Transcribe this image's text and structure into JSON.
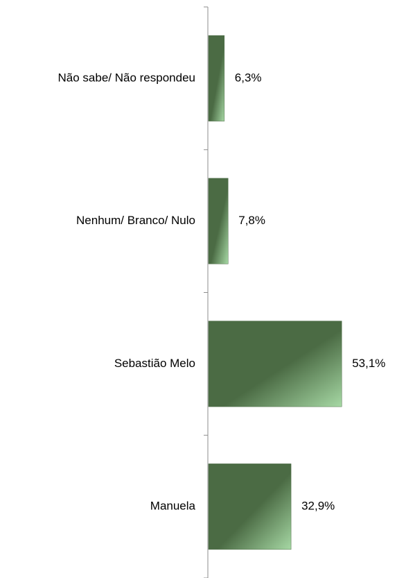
{
  "chart_data": {
    "type": "bar",
    "orientation": "horizontal",
    "categories": [
      "Não sabe/ Não respondeu",
      "Nenhum/ Branco/ Nulo",
      "Sebastião Melo",
      "Manuela"
    ],
    "values": [
      6.3,
      7.8,
      53.1,
      32.9
    ],
    "value_labels": [
      "6,3%",
      "7,8%",
      "53,1%",
      "32,9%"
    ],
    "color": "#4b6b44"
  }
}
